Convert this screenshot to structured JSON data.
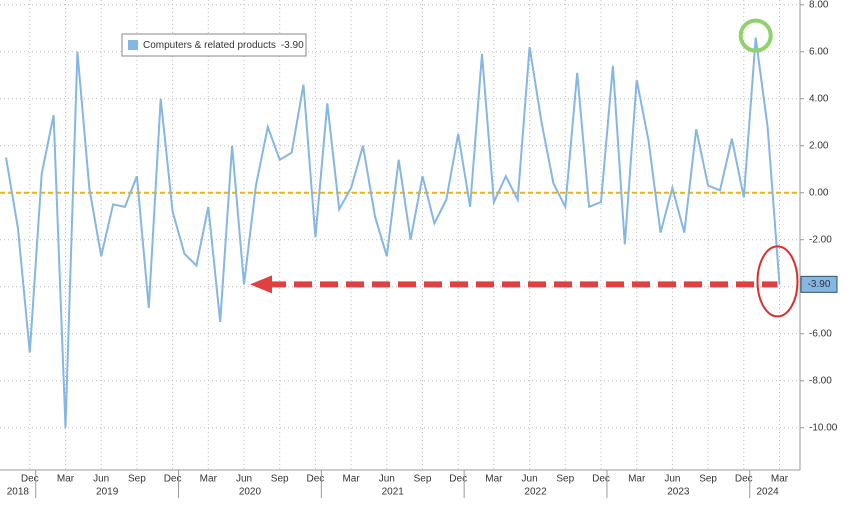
{
  "chart_data": {
    "type": "line",
    "categories": [
      null,
      null,
      "Dec",
      null,
      null,
      "Mar",
      null,
      null,
      "Jun",
      null,
      null,
      "Sep",
      null,
      null,
      "Dec",
      null,
      null,
      "Mar",
      null,
      null,
      "Jun",
      null,
      null,
      "Sep",
      null,
      null,
      "Dec",
      null,
      null,
      "Mar",
      null,
      null,
      "Jun",
      null,
      null,
      "Sep",
      null,
      null,
      "Dec",
      null,
      null,
      "Mar",
      null,
      null,
      "Jun",
      null,
      null,
      "Sep",
      null,
      null,
      "Dec",
      null,
      null,
      "Mar",
      null,
      null,
      "Jun",
      null,
      null,
      "Sep",
      null,
      null,
      "Dec",
      null,
      null,
      "Mar"
    ],
    "year_labels": [
      "2018",
      "2019",
      "2020",
      "2021",
      "2022",
      "2023",
      "2024"
    ],
    "series": [
      {
        "name": "Computers & related products",
        "color": "#86b6e2",
        "last_label": "-3.90",
        "values": [
          1.5,
          -1.5,
          -6.8,
          0.8,
          3.3,
          -10,
          6.0,
          0.2,
          -2.7,
          -0.5,
          -0.6,
          0.7,
          -4.9,
          4.0,
          -0.8,
          -2.6,
          -3.1,
          -0.6,
          -5.5,
          2.0,
          -3.9,
          0.3,
          2.8,
          1.4,
          1.7,
          4.6,
          -1.9,
          3.8,
          -0.7,
          0.2,
          2.0,
          -1.0,
          -2.7,
          1.4,
          -2.0,
          0.7,
          -1.3,
          -0.3,
          2.5,
          -0.6,
          5.9,
          -0.4,
          0.7,
          -0.3,
          6.2,
          3.0,
          0.4,
          -0.6,
          5.1,
          -0.6,
          -0.4,
          5.4,
          -2.2,
          4.8,
          2.2,
          -1.7,
          0.2,
          -1.7,
          2.7,
          0.3,
          0.1,
          2.3,
          -0.2,
          6.6,
          2.8,
          -3.9
        ]
      }
    ],
    "ylim": [
      -11.8,
      8.2
    ],
    "yticks": [
      {
        "value": 8,
        "label": "8.00"
      },
      {
        "value": 6,
        "label": "6.00"
      },
      {
        "value": 4,
        "label": "4.00"
      },
      {
        "value": 2,
        "label": "2.00"
      },
      {
        "value": 0,
        "label": "0.00"
      },
      {
        "value": -2,
        "label": "-2.00"
      },
      {
        "value": -4,
        "label": "-4.00"
      },
      {
        "value": -6,
        "label": "-6.00"
      },
      {
        "value": -8,
        "label": "-8.00"
      },
      {
        "value": -10,
        "label": "-10.00"
      }
    ],
    "grid": true,
    "zero_line_color": "#e6b422",
    "legend": "top-left"
  }
}
